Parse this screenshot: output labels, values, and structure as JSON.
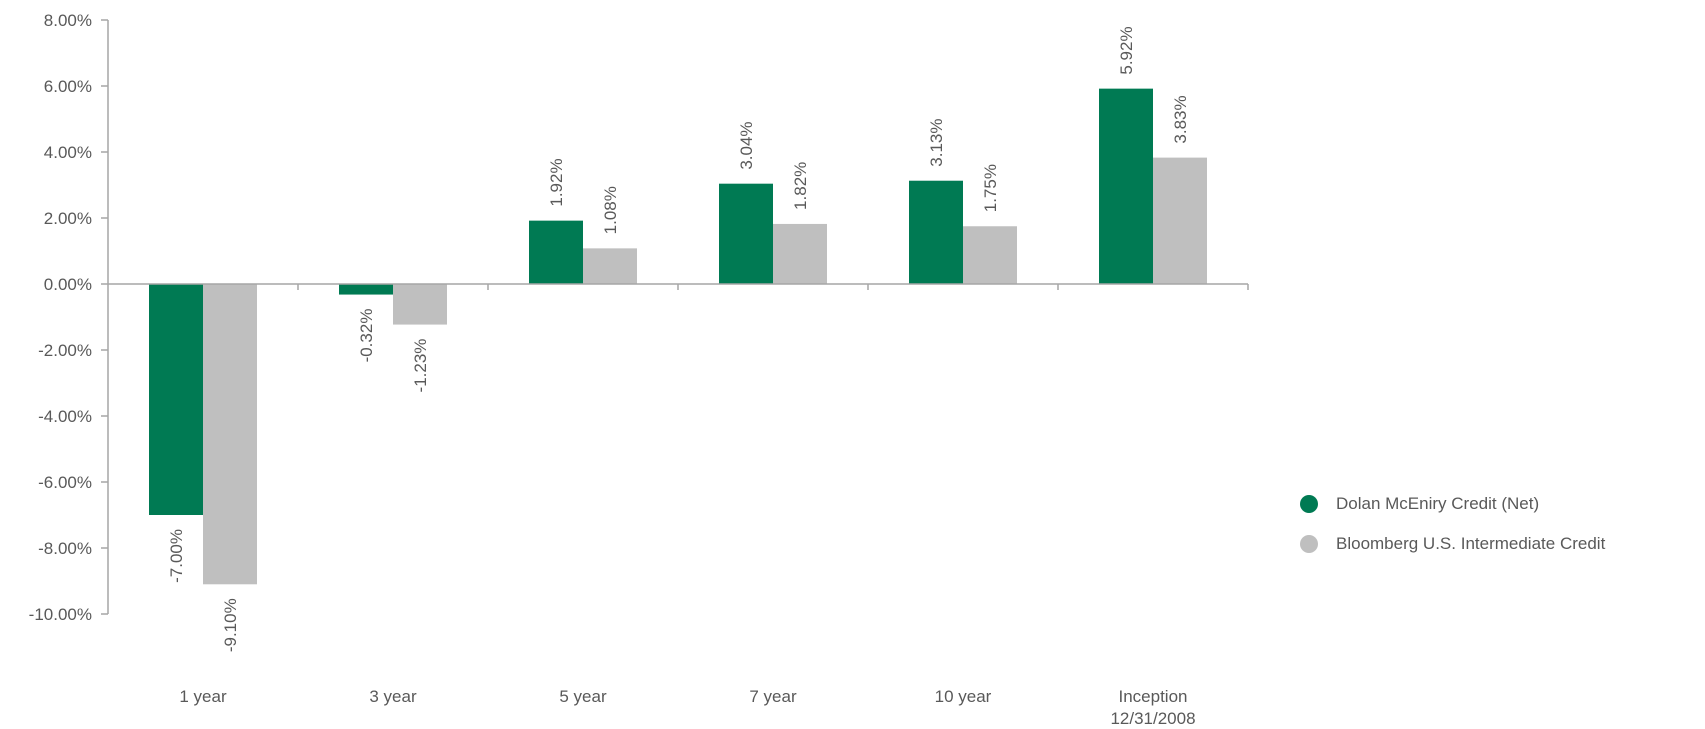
{
  "chart_data": {
    "type": "bar",
    "categories": [
      "1 year",
      "3 year",
      "5 year",
      "7 year",
      "10 year",
      "Inception 12/31/2008"
    ],
    "category_lines": [
      [
        "1 year"
      ],
      [
        "3 year"
      ],
      [
        "5 year"
      ],
      [
        "7 year"
      ],
      [
        "10 year"
      ],
      [
        "Inception",
        "12/31/2008"
      ]
    ],
    "series": [
      {
        "name": "Dolan McEniry Credit (Net)",
        "color": "#007A53",
        "values": [
          -7.0,
          -0.32,
          1.92,
          3.04,
          3.13,
          5.92
        ],
        "labels": [
          "-7.00%",
          "-0.32%",
          "1.92%",
          "3.04%",
          "3.13%",
          "5.92%"
        ]
      },
      {
        "name": "Bloomberg U.S. Intermediate Credit",
        "color": "#BFBFBF",
        "values": [
          -9.1,
          -1.23,
          1.08,
          1.82,
          1.75,
          3.83
        ],
        "labels": [
          "-9.10%",
          "-1.23%",
          "1.08%",
          "1.82%",
          "1.75%",
          "3.83%"
        ]
      }
    ],
    "ylim": [
      -10,
      8
    ],
    "yticks": [
      8,
      6,
      4,
      2,
      0,
      -2,
      -4,
      -6,
      -8,
      -10
    ],
    "ytick_labels": [
      "8.00%",
      "6.00%",
      "4.00%",
      "2.00%",
      "0.00%",
      "-2.00%",
      "-4.00%",
      "-6.00%",
      "-8.00%",
      "-10.00%"
    ],
    "xlabel": "",
    "ylabel": "",
    "grid": false,
    "legend_position": "right"
  }
}
